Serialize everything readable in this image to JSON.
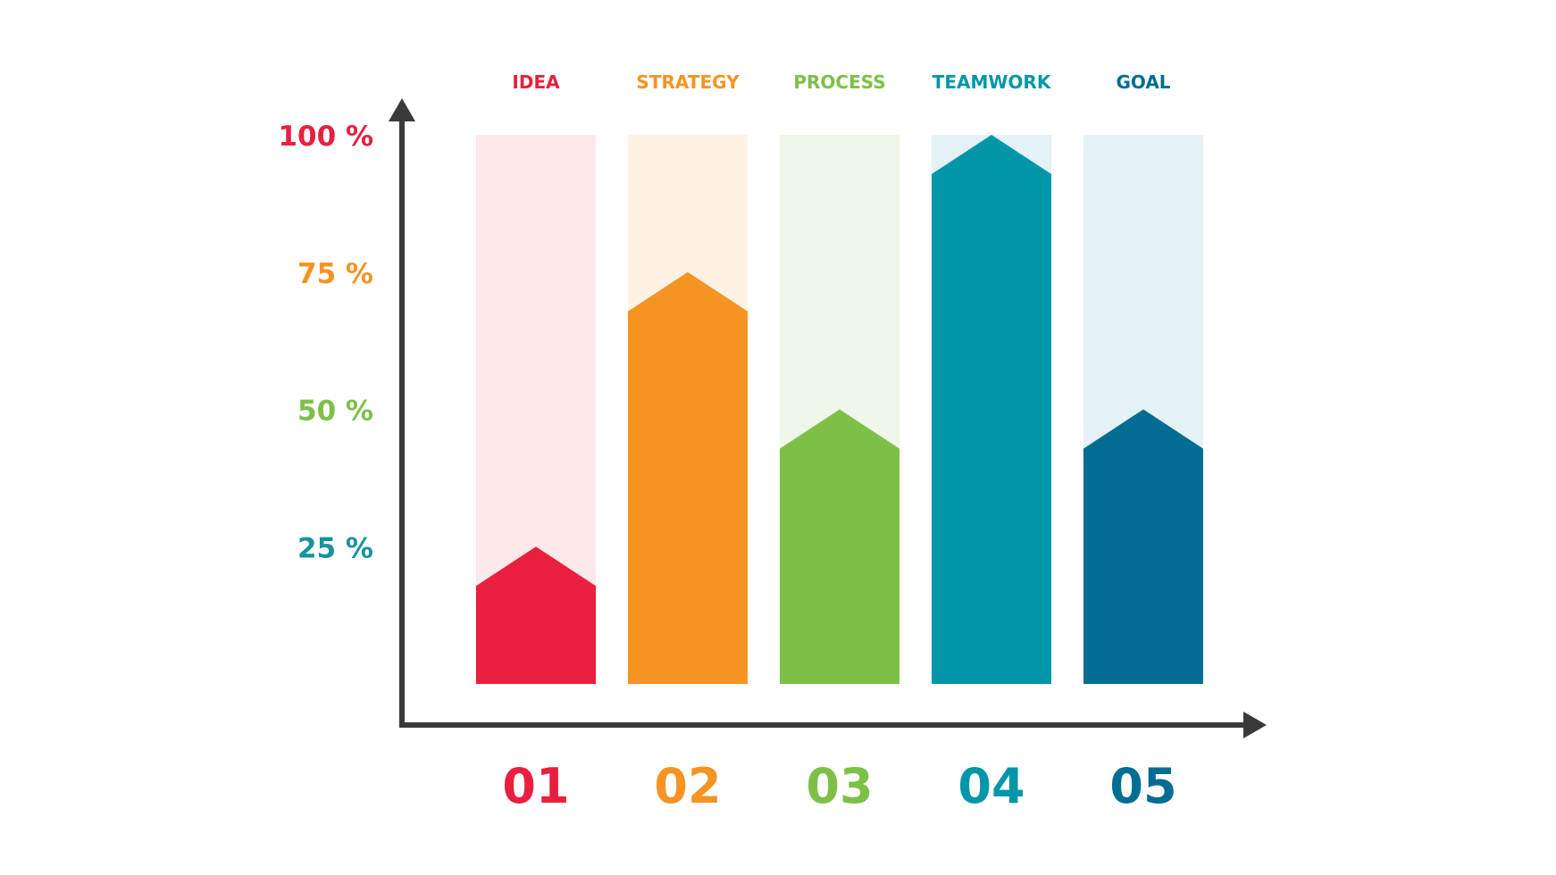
{
  "colors": {
    "axis": "#3a3a3a",
    "background": "#ffffff"
  },
  "chart_data": {
    "type": "bar",
    "title": "",
    "xlabel": "",
    "ylabel": "",
    "ylim": [
      0,
      100
    ],
    "y_unit": "%",
    "grid": false,
    "legend": "none",
    "bar_shape": "arrow",
    "categories": [
      "01",
      "02",
      "03",
      "04",
      "05"
    ],
    "category_titles": [
      "IDEA",
      "STRATEGY",
      "PROCESS",
      "TEAMWORK",
      "GOAL"
    ],
    "values": [
      25,
      75,
      50,
      100,
      50
    ],
    "bar_colors": [
      "#ea1e3e",
      "#f59323",
      "#7cc146",
      "#0197a8",
      "#016d92"
    ],
    "track_colors": [
      "#fde9ea",
      "#fef2e4",
      "#eff6ea",
      "#e4f1f5",
      "#e4f1f5"
    ],
    "y_ticks": [
      {
        "value": 25,
        "label": "25 %",
        "color": "#16949f"
      },
      {
        "value": 50,
        "label": "50 %",
        "color": "#7cc146"
      },
      {
        "value": 75,
        "label": "75 %",
        "color": "#f59323"
      },
      {
        "value": 100,
        "label": "100 %",
        "color": "#e8203f"
      }
    ]
  }
}
